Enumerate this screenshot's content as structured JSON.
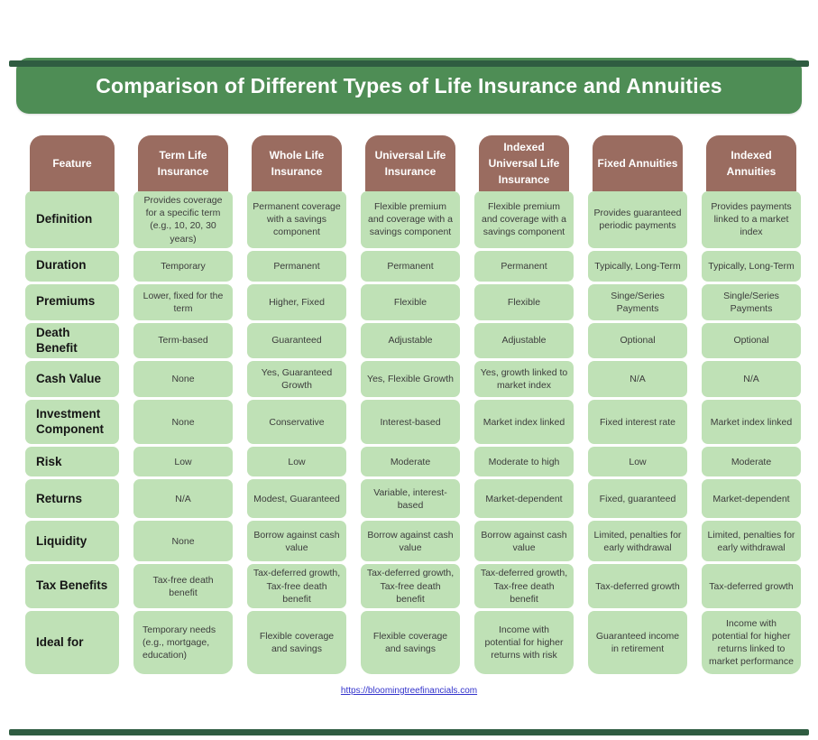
{
  "page": {
    "title": "Comparison of Different Types of Life Insurance and Annuities",
    "link": "https://bloomingtreefinancials.com"
  },
  "colors": {
    "banner_green": "#4e8d55",
    "header_brown": "#9a6c60",
    "cell_green": "#bfe1b6",
    "bar_green": "#2f5c41",
    "link_blue": "#3333cc"
  },
  "table": {
    "feature_header": "Feature",
    "columns": [
      "Term Life Insurance",
      "Whole Life Insurance",
      "Universal Life Insurance",
      "Indexed Universal Life Insurance",
      "Fixed Annuities",
      "Indexed Annuities"
    ],
    "rows": [
      {
        "feature": "Definition",
        "values": [
          "Provides coverage for a specific term (e.g., 10, 20, 30 years)",
          "Permanent coverage with a savings component",
          "Flexible premium and coverage with a savings component",
          "Flexible premium and coverage with a savings component",
          "Provides guaranteed periodic payments",
          "Provides payments linked to a market index"
        ]
      },
      {
        "feature": "Duration",
        "values": [
          "Temporary",
          "Permanent",
          "Permanent",
          "Permanent",
          "Typically, Long-Term",
          "Typically, Long-Term"
        ]
      },
      {
        "feature": "Premiums",
        "values": [
          "Lower, fixed for the term",
          "Higher, Fixed",
          "Flexible",
          "Flexible",
          "Singe/Series Payments",
          "Single/Series Payments"
        ]
      },
      {
        "feature": "Death Benefit",
        "values": [
          "Term-based",
          "Guaranteed",
          "Adjustable",
          "Adjustable",
          "Optional",
          "Optional"
        ]
      },
      {
        "feature": "Cash Value",
        "values": [
          "None",
          "Yes, Guaranteed Growth",
          "Yes, Flexible Growth",
          "Yes, growth linked to market index",
          "N/A",
          "N/A"
        ]
      },
      {
        "feature": "Investment Component",
        "values": [
          "None",
          "Conservative",
          "Interest-based",
          "Market index linked",
          "Fixed interest rate",
          "Market index linked"
        ]
      },
      {
        "feature": "Risk",
        "values": [
          "Low",
          "Low",
          "Moderate",
          "Moderate to high",
          "Low",
          "Moderate"
        ]
      },
      {
        "feature": "Returns",
        "values": [
          "N/A",
          "Modest, Guaranteed",
          "Variable, interest-based",
          "Market-dependent",
          "Fixed, guaranteed",
          "Market-dependent"
        ]
      },
      {
        "feature": "Liquidity",
        "values": [
          "None",
          "Borrow against cash value",
          "Borrow against cash value",
          "Borrow against cash value",
          "Limited, penalties for early withdrawal",
          "Limited, penalties for early withdrawal"
        ]
      },
      {
        "feature": "Tax Benefits",
        "values": [
          "Tax-free death benefit",
          "Tax-deferred growth, Tax-free death benefit",
          "Tax-deferred growth, Tax-free death benefit",
          "Tax-deferred growth, Tax-free death benefit",
          "Tax-deferred growth",
          "Tax-deferred growth"
        ]
      },
      {
        "feature": "Ideal for",
        "values": [
          "Temporary needs (e.g., mortgage, education)",
          "Flexible coverage and savings",
          "Flexible coverage and savings",
          "Income with potential for higher returns with risk",
          "Guaranteed income in retirement",
          "Income with potential for higher returns linked to market performance"
        ]
      }
    ]
  }
}
